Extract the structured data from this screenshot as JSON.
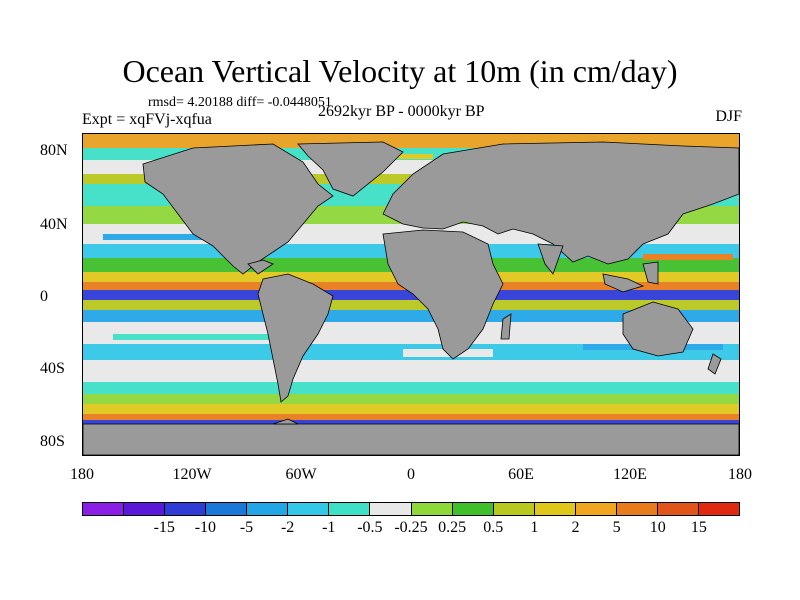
{
  "title": "Ocean Vertical Velocity at 10m (in cm/day)",
  "stats": "rmsd= 4.20188 diff= -0.0448051",
  "experiment": "Expt = xqFVj-xqfua",
  "period": "2692kyr BP - 0000kyr BP",
  "season": "DJF",
  "map": {
    "land_color": "#9a9a9a",
    "projection": "cylindrical equidistant",
    "lat_labels": [
      "80N",
      "40N",
      "0",
      "40S",
      "80S"
    ],
    "lon_labels": [
      "180",
      "120W",
      "60W",
      "0",
      "60E",
      "120E",
      "180"
    ]
  },
  "colorbar": {
    "colors": [
      "#8a1fe6",
      "#5a18d8",
      "#2f3cd6",
      "#1a78d8",
      "#22a6e6",
      "#33c8e8",
      "#3ee0c8",
      "#e8e8e8",
      "#8fd83a",
      "#3fbf2a",
      "#b8c81e",
      "#e0c81a",
      "#f0a620",
      "#e87c1c",
      "#e0561a",
      "#e02a10"
    ],
    "labels": [
      "-15",
      "-10",
      "-5",
      "-2",
      "-1",
      "-0.5",
      "-0.25",
      "0.25",
      "0.5",
      "1",
      "2",
      "5",
      "10",
      "15"
    ]
  }
}
